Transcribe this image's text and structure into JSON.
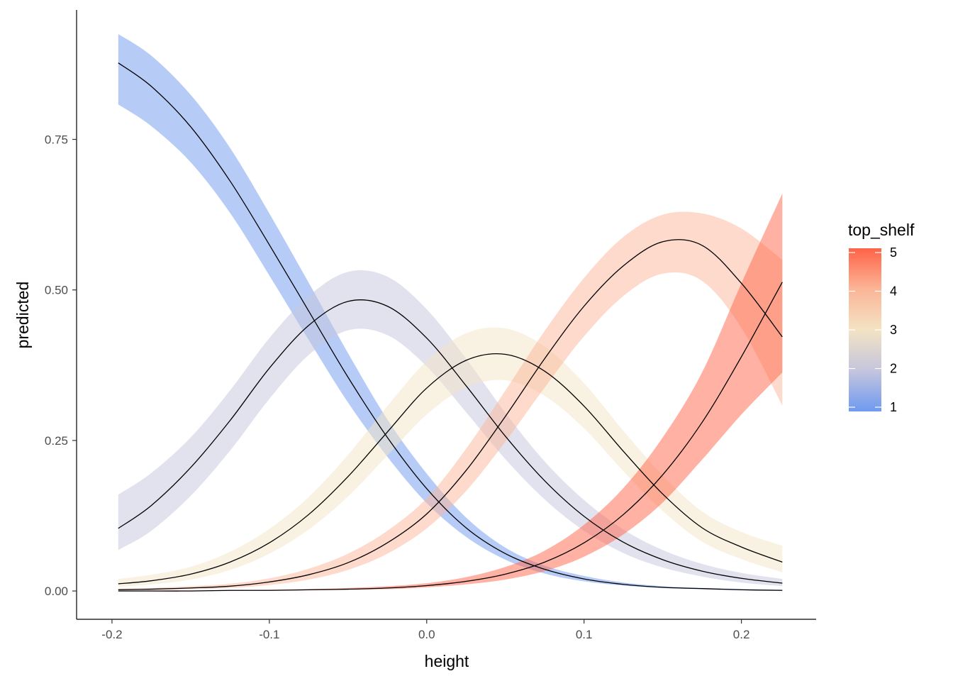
{
  "chart_data": {
    "type": "line",
    "xlabel": "height",
    "ylabel": "predicted",
    "xlim": [
      -0.2225,
      0.2475
    ],
    "ylim": [
      -0.047,
      0.965
    ],
    "x_ticks": [
      {
        "value": -0.2,
        "label": "-0.2"
      },
      {
        "value": -0.1,
        "label": "-0.1"
      },
      {
        "value": 0.0,
        "label": "0.0"
      },
      {
        "value": 0.1,
        "label": "0.1"
      },
      {
        "value": 0.2,
        "label": "0.2"
      }
    ],
    "y_ticks": [
      {
        "value": 0.0,
        "label": "0.00"
      },
      {
        "value": 0.25,
        "label": "0.25"
      },
      {
        "value": 0.5,
        "label": "0.50"
      },
      {
        "value": 0.75,
        "label": "0.75"
      }
    ],
    "grid": false,
    "legend": {
      "title": "top_shelf",
      "position": "right",
      "range": [
        1,
        5
      ],
      "labels": [
        "1",
        "2",
        "3",
        "4",
        "5"
      ],
      "colors": [
        "#6e9af0",
        "#c5c5dd",
        "#f3e3c3",
        "#fbb597",
        "#ff6347"
      ]
    },
    "series": [
      {
        "level": 1,
        "band_color": "#6e9af0",
        "x": [
          -0.196,
          -0.175,
          -0.15,
          -0.125,
          -0.1,
          -0.075,
          -0.05,
          -0.025,
          0.0,
          0.025,
          0.05,
          0.075,
          0.1,
          0.125,
          0.15,
          0.175,
          0.2,
          0.226
        ],
        "y": [
          0.877,
          0.838,
          0.771,
          0.681,
          0.575,
          0.465,
          0.355,
          0.255,
          0.17,
          0.105,
          0.062,
          0.036,
          0.02,
          0.011,
          0.006,
          0.004,
          0.002,
          0.001
        ],
        "lower": [
          0.808,
          0.772,
          0.712,
          0.628,
          0.524,
          0.417,
          0.313,
          0.223,
          0.146,
          0.09,
          0.052,
          0.029,
          0.016,
          0.009,
          0.005,
          0.003,
          0.001,
          0.001
        ],
        "upper": [
          0.925,
          0.889,
          0.824,
          0.736,
          0.627,
          0.512,
          0.395,
          0.285,
          0.195,
          0.122,
          0.072,
          0.042,
          0.025,
          0.014,
          0.008,
          0.005,
          0.003,
          0.002
        ]
      },
      {
        "level": 2,
        "band_color": "#c5c5dd",
        "x": [
          -0.196,
          -0.175,
          -0.15,
          -0.125,
          -0.1,
          -0.075,
          -0.05,
          -0.025,
          0.0,
          0.025,
          0.05,
          0.075,
          0.1,
          0.125,
          0.15,
          0.175,
          0.2,
          0.226
        ],
        "y": [
          0.104,
          0.142,
          0.205,
          0.283,
          0.37,
          0.441,
          0.481,
          0.473,
          0.42,
          0.341,
          0.257,
          0.183,
          0.124,
          0.081,
          0.052,
          0.033,
          0.021,
          0.013
        ],
        "lower": [
          0.068,
          0.1,
          0.158,
          0.233,
          0.319,
          0.392,
          0.433,
          0.425,
          0.373,
          0.297,
          0.219,
          0.152,
          0.1,
          0.063,
          0.039,
          0.024,
          0.014,
          0.008
        ],
        "upper": [
          0.16,
          0.196,
          0.255,
          0.333,
          0.42,
          0.49,
          0.53,
          0.522,
          0.468,
          0.386,
          0.296,
          0.215,
          0.151,
          0.102,
          0.068,
          0.045,
          0.03,
          0.02
        ]
      },
      {
        "level": 3,
        "band_color": "#f3e3c3",
        "x": [
          -0.196,
          -0.175,
          -0.15,
          -0.125,
          -0.1,
          -0.075,
          -0.05,
          -0.025,
          0.0,
          0.025,
          0.05,
          0.075,
          0.1,
          0.125,
          0.15,
          0.175,
          0.2,
          0.226
        ],
        "y": [
          0.012,
          0.017,
          0.028,
          0.048,
          0.08,
          0.127,
          0.19,
          0.264,
          0.337,
          0.383,
          0.393,
          0.365,
          0.307,
          0.232,
          0.161,
          0.105,
          0.073,
          0.048
        ],
        "lower": [
          0.007,
          0.011,
          0.019,
          0.035,
          0.062,
          0.102,
          0.157,
          0.225,
          0.293,
          0.338,
          0.35,
          0.324,
          0.27,
          0.199,
          0.133,
          0.082,
          0.053,
          0.031
        ],
        "upper": [
          0.02,
          0.027,
          0.04,
          0.065,
          0.103,
          0.156,
          0.226,
          0.307,
          0.382,
          0.428,
          0.436,
          0.406,
          0.345,
          0.266,
          0.192,
          0.132,
          0.098,
          0.075
        ]
      },
      {
        "level": 4,
        "band_color": "#fbb597",
        "x": [
          -0.196,
          -0.175,
          -0.15,
          -0.125,
          -0.1,
          -0.075,
          -0.05,
          -0.025,
          0.0,
          0.025,
          0.05,
          0.075,
          0.1,
          0.125,
          0.15,
          0.175,
          0.2,
          0.226
        ],
        "y": [
          0.002,
          0.003,
          0.005,
          0.008,
          0.015,
          0.027,
          0.047,
          0.08,
          0.128,
          0.2,
          0.29,
          0.386,
          0.473,
          0.54,
          0.58,
          0.574,
          0.511,
          0.422
        ],
        "lower": [
          0.001,
          0.002,
          0.003,
          0.005,
          0.01,
          0.019,
          0.035,
          0.062,
          0.104,
          0.166,
          0.248,
          0.338,
          0.423,
          0.49,
          0.527,
          0.515,
          0.437,
          0.308
        ],
        "upper": [
          0.004,
          0.005,
          0.008,
          0.012,
          0.021,
          0.037,
          0.062,
          0.1,
          0.154,
          0.236,
          0.333,
          0.432,
          0.52,
          0.588,
          0.625,
          0.627,
          0.602,
          0.55
        ]
      },
      {
        "level": 5,
        "band_color": "#ff6347",
        "x": [
          -0.196,
          -0.175,
          -0.15,
          -0.125,
          -0.1,
          -0.075,
          -0.05,
          -0.025,
          0.0,
          0.025,
          0.05,
          0.075,
          0.1,
          0.125,
          0.15,
          0.175,
          0.2,
          0.226
        ],
        "y": [
          0.0,
          0.0,
          0.0,
          0.001,
          0.001,
          0.002,
          0.003,
          0.005,
          0.009,
          0.016,
          0.028,
          0.048,
          0.08,
          0.127,
          0.193,
          0.28,
          0.389,
          0.513
        ],
        "lower": [
          0.0,
          0.0,
          0.0,
          0.0,
          0.001,
          0.001,
          0.002,
          0.003,
          0.006,
          0.011,
          0.019,
          0.033,
          0.057,
          0.094,
          0.147,
          0.218,
          0.293,
          0.363
        ],
        "upper": [
          0.0,
          0.001,
          0.001,
          0.001,
          0.002,
          0.003,
          0.005,
          0.008,
          0.013,
          0.023,
          0.04,
          0.067,
          0.11,
          0.171,
          0.255,
          0.363,
          0.511,
          0.66
        ]
      }
    ]
  }
}
